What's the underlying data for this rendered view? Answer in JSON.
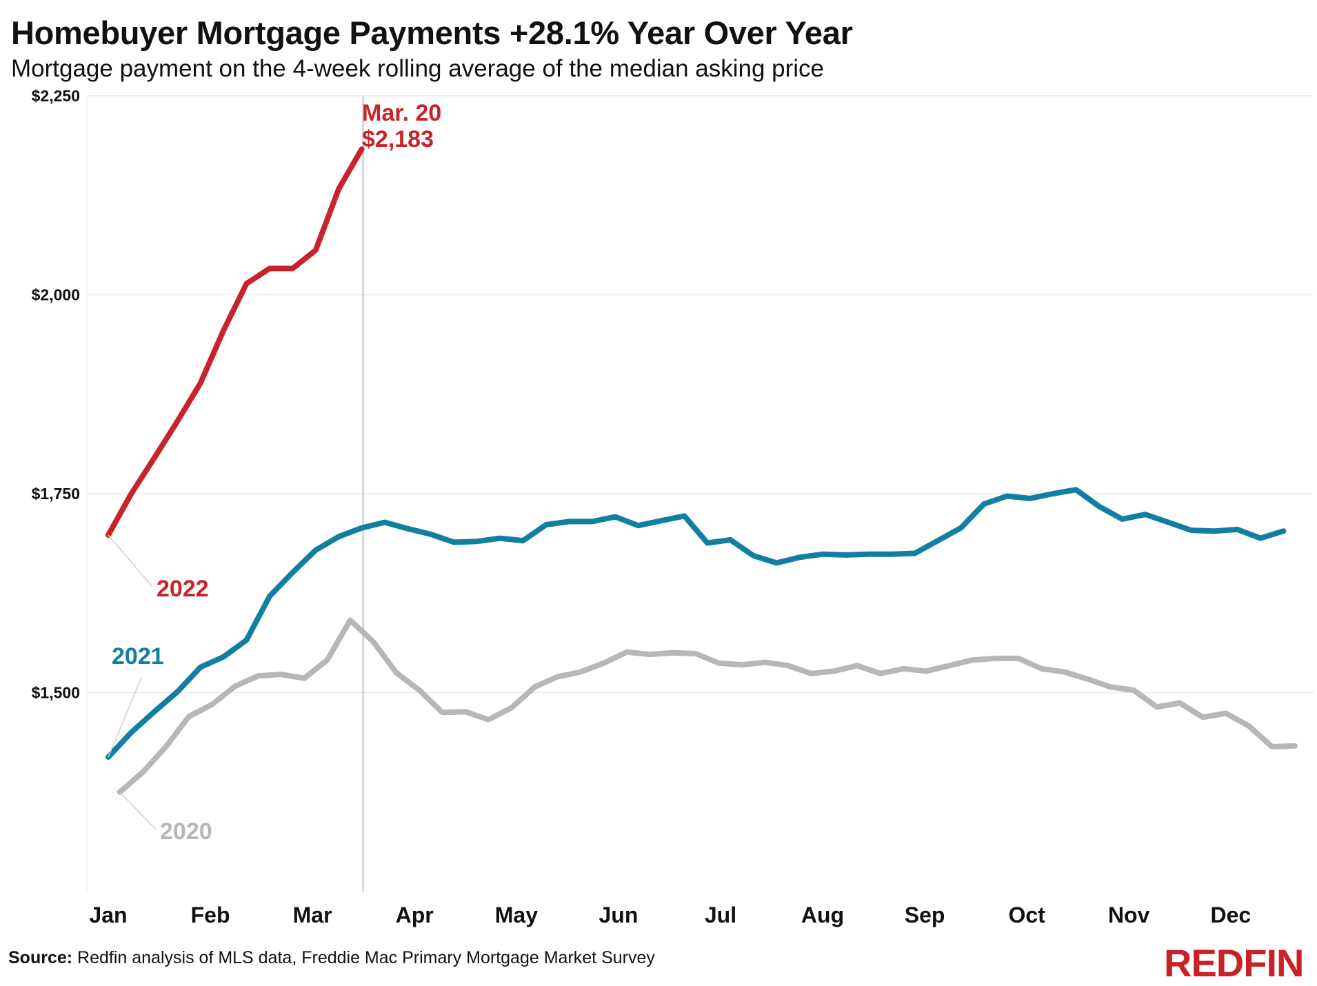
{
  "header": {
    "title": "Homebuyer Mortgage Payments +28.1% Year Over Year",
    "subtitle": "Mortgage payment on the 4-week rolling average of the median asking price"
  },
  "footer": {
    "source_label": "Source:",
    "source_text": "Redfin analysis of MLS data, Freddie Mac Primary Mortgage Market Survey",
    "logo_text": "REDFIN"
  },
  "colors": {
    "s2022": "#c8232b",
    "s2021": "#127fa1",
    "s2020": "#b7b7b7",
    "grid": "#e9e9e9",
    "marker": "#d6d6d6",
    "brand": "#c82127"
  },
  "chart_data": {
    "type": "line",
    "title": "Homebuyer Mortgage Payments +28.1% Year Over Year",
    "subtitle": "Mortgage payment on the 4-week rolling average of the median asking price",
    "xlabel": "",
    "ylabel": "",
    "x_unit": "week of year",
    "x_ticks": [
      {
        "label": "Jan",
        "week": 0
      },
      {
        "label": "Feb",
        "week": 4.43
      },
      {
        "label": "Mar",
        "week": 8.86
      },
      {
        "label": "Apr",
        "week": 13.29
      },
      {
        "label": "May",
        "week": 17.71
      },
      {
        "label": "Jun",
        "week": 22.14
      },
      {
        "label": "Jul",
        "week": 26.57
      },
      {
        "label": "Aug",
        "week": 31
      },
      {
        "label": "Sep",
        "week": 35.43
      },
      {
        "label": "Oct",
        "week": 39.86
      },
      {
        "label": "Nov",
        "week": 44.29
      },
      {
        "label": "Dec",
        "week": 48.71
      }
    ],
    "y_ticks": [
      {
        "label": "$1,500",
        "value": 1500
      },
      {
        "label": "$1,750",
        "value": 1750
      },
      {
        "label": "$2,000",
        "value": 2000
      },
      {
        "label": "$2,250",
        "value": 2250
      }
    ],
    "ylim": [
      1250,
      2250
    ],
    "grid": true,
    "marker_line": {
      "week": 11,
      "date_label": "Mar. 20",
      "value_label": "$2,183",
      "value": 2183
    },
    "series": [
      {
        "name": "2020",
        "label_pos": "bottom-left",
        "values": [
          [
            0.5,
            1375
          ],
          [
            1.5,
            1400
          ],
          [
            2.5,
            1432
          ],
          [
            3.5,
            1470
          ],
          [
            4.5,
            1485
          ],
          [
            5.5,
            1508
          ],
          [
            6.5,
            1521
          ],
          [
            7.5,
            1523
          ],
          [
            8.5,
            1518
          ],
          [
            9.5,
            1541
          ],
          [
            10.5,
            1591
          ],
          [
            11.5,
            1564
          ],
          [
            12.5,
            1525
          ],
          [
            13.5,
            1503
          ],
          [
            14.5,
            1475
          ],
          [
            15.5,
            1476
          ],
          [
            16.5,
            1466
          ],
          [
            17.5,
            1481
          ],
          [
            18.5,
            1507
          ],
          [
            19.5,
            1520
          ],
          [
            20.5,
            1526
          ],
          [
            21.5,
            1537
          ],
          [
            22.5,
            1551
          ],
          [
            23.5,
            1548
          ],
          [
            24.5,
            1550
          ],
          [
            25.5,
            1549
          ],
          [
            26.5,
            1537
          ],
          [
            27.5,
            1535
          ],
          [
            28.5,
            1538
          ],
          [
            29.5,
            1534
          ],
          [
            30.5,
            1524
          ],
          [
            31.5,
            1527
          ],
          [
            32.5,
            1534
          ],
          [
            33.5,
            1524
          ],
          [
            34.5,
            1530
          ],
          [
            35.5,
            1527
          ],
          [
            36.5,
            1534
          ],
          [
            37.5,
            1541
          ],
          [
            38.5,
            1543
          ],
          [
            39.5,
            1543
          ],
          [
            40.5,
            1530
          ],
          [
            41.5,
            1526
          ],
          [
            42.5,
            1517
          ],
          [
            43.5,
            1507
          ],
          [
            44.5,
            1503
          ],
          [
            45.5,
            1482
          ],
          [
            46.5,
            1487
          ],
          [
            47.5,
            1469
          ],
          [
            48.5,
            1474
          ],
          [
            49.5,
            1458
          ],
          [
            50.5,
            1432
          ],
          [
            51.5,
            1433
          ]
        ]
      },
      {
        "name": "2021",
        "label_pos": "left",
        "values": [
          [
            0,
            1419
          ],
          [
            1,
            1450
          ],
          [
            2,
            1476
          ],
          [
            3,
            1501
          ],
          [
            4,
            1532
          ],
          [
            5,
            1545
          ],
          [
            6,
            1566
          ],
          [
            7,
            1621
          ],
          [
            8,
            1651
          ],
          [
            9,
            1679
          ],
          [
            10,
            1696
          ],
          [
            11,
            1707
          ],
          [
            12,
            1714
          ],
          [
            13,
            1706
          ],
          [
            14,
            1699
          ],
          [
            15,
            1689
          ],
          [
            16,
            1690
          ],
          [
            17,
            1694
          ],
          [
            18,
            1691
          ],
          [
            19,
            1711
          ],
          [
            20,
            1715
          ],
          [
            21,
            1715
          ],
          [
            22,
            1721
          ],
          [
            23,
            1710
          ],
          [
            24,
            1716
          ],
          [
            25,
            1722
          ],
          [
            26,
            1688
          ],
          [
            27,
            1692
          ],
          [
            28,
            1672
          ],
          [
            29,
            1663
          ],
          [
            30,
            1670
          ],
          [
            31,
            1674
          ],
          [
            32,
            1673
          ],
          [
            33,
            1674
          ],
          [
            34,
            1674
          ],
          [
            35,
            1675
          ],
          [
            36,
            1691
          ],
          [
            37,
            1707
          ],
          [
            38,
            1737
          ],
          [
            39,
            1747
          ],
          [
            40,
            1744
          ],
          [
            41,
            1750
          ],
          [
            42,
            1755
          ],
          [
            43,
            1734
          ],
          [
            44,
            1718
          ],
          [
            45,
            1724
          ],
          [
            46,
            1714
          ],
          [
            47,
            1704
          ],
          [
            48,
            1703
          ],
          [
            49,
            1705
          ],
          [
            50,
            1694
          ],
          [
            51,
            1703
          ]
        ]
      },
      {
        "name": "2022",
        "label_pos": "bottom-right",
        "values": [
          [
            0,
            1698
          ],
          [
            1,
            1750
          ],
          [
            2,
            1795
          ],
          [
            3,
            1841
          ],
          [
            4,
            1889
          ],
          [
            5,
            1955
          ],
          [
            6,
            2014
          ],
          [
            7,
            2033
          ],
          [
            8,
            2033
          ],
          [
            9,
            2056
          ],
          [
            10,
            2133
          ],
          [
            11,
            2183
          ]
        ]
      }
    ]
  }
}
